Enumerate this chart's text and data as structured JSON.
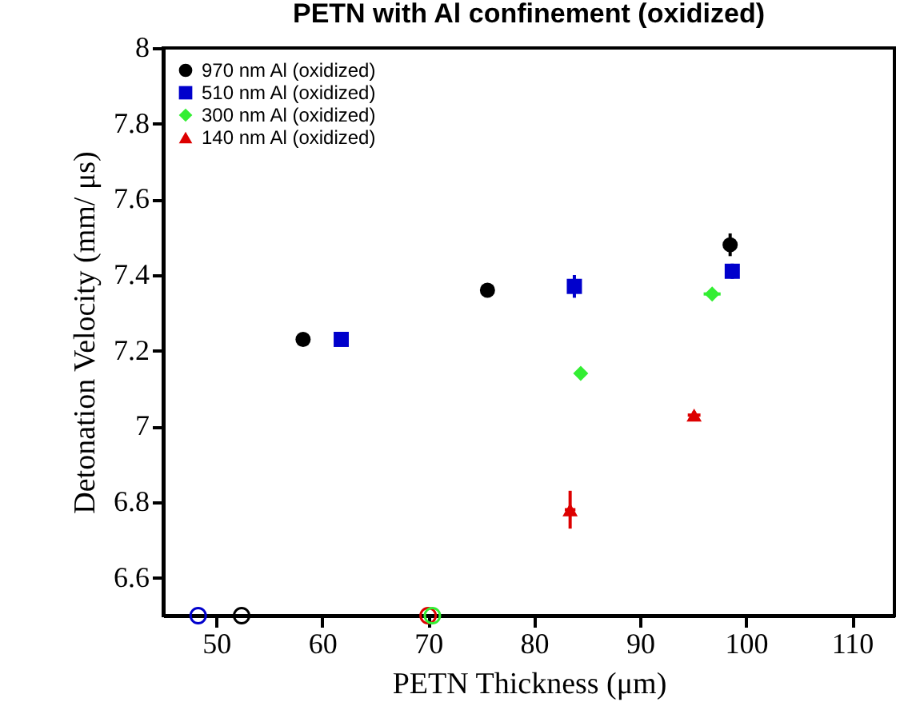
{
  "chart_data": {
    "type": "scatter",
    "title": "PETN with Al confinement (oxidized)",
    "xlabel": "PETN Thickness (μm)",
    "ylabel": "Detonation Velocity (mm/ μs)",
    "xlim": [
      45,
      114
    ],
    "xticks": [
      50,
      60,
      70,
      80,
      90,
      100,
      110
    ],
    "ylim": [
      6.5,
      8
    ],
    "yticks": [
      6.6,
      6.8,
      7,
      7.2,
      7.4,
      7.6,
      7.8,
      8
    ],
    "grid": false,
    "legend": "top left",
    "series": [
      {
        "name": "970 nm Al (oxidized)",
        "color": "#000000",
        "marker": "circle",
        "x": [
          58.2,
          75.6,
          98.5
        ],
        "values": [
          7.23,
          7.36,
          7.48
        ],
        "errors": [
          null,
          null,
          0.03
        ]
      },
      {
        "name": "510 nm Al (oxidized)",
        "color": "#0000cc",
        "marker": "square",
        "x": [
          61.8,
          83.8,
          98.7
        ],
        "values": [
          7.23,
          7.37,
          7.41
        ],
        "errors": [
          null,
          0.03,
          0.02
        ]
      },
      {
        "name": "300 nm Al (oxidized)",
        "color": "#33ee33",
        "marker": "diamond",
        "x": [
          84.4,
          96.8
        ],
        "values": [
          7.14,
          7.35
        ],
        "xerrors": [
          null,
          0.8
        ]
      },
      {
        "name": "140 nm Al (oxidized)",
        "color": "#dd0000",
        "marker": "triangle",
        "x": [
          83.4,
          95.1
        ],
        "values": [
          6.78,
          7.03
        ],
        "errors": [
          0.05,
          0.01
        ],
        "xerrors": [
          0.5,
          0.6
        ]
      },
      {
        "color": "#0000cc",
        "marker": "circle",
        "x": [
          48.3
        ],
        "values": [
          6.5
        ]
      },
      {
        "color": "#000000",
        "marker": "circle",
        "x": [
          52.4
        ],
        "values": [
          6.5
        ]
      },
      {
        "color": "#dd0000",
        "marker": "circle",
        "x": [
          70.0
        ],
        "values": [
          6.5
        ]
      },
      {
        "color": "#33ee33",
        "marker": "circle",
        "x": [
          70.4
        ],
        "values": [
          6.5
        ]
      }
    ]
  }
}
